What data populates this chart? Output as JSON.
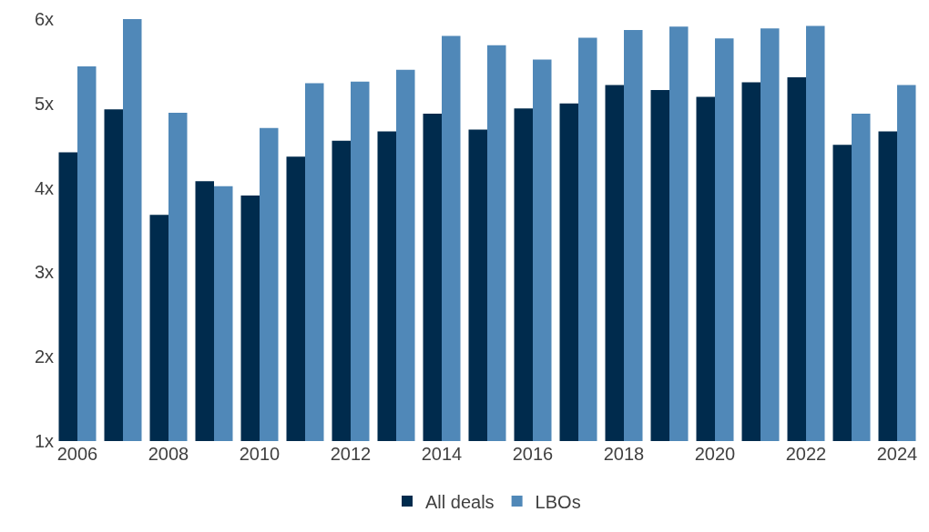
{
  "chart_data": {
    "type": "bar",
    "categories": [
      "2006",
      null,
      "2008",
      null,
      "2010",
      null,
      "2012",
      null,
      "2014",
      null,
      "2016",
      null,
      "2018",
      null,
      "2020",
      null,
      "2022",
      null,
      "2024"
    ],
    "series": [
      {
        "name": "All deals",
        "color": "#002b4d",
        "values": [
          4.42,
          4.93,
          3.68,
          4.08,
          3.91,
          4.37,
          4.56,
          4.67,
          4.88,
          4.69,
          4.94,
          5.0,
          5.22,
          5.16,
          5.08,
          5.25,
          5.31,
          4.51,
          4.67
        ]
      },
      {
        "name": "LBOs",
        "color": "#5088b8",
        "values": [
          5.44,
          6.0,
          4.89,
          4.02,
          4.71,
          5.24,
          5.26,
          5.4,
          5.8,
          5.69,
          5.52,
          5.78,
          5.87,
          5.91,
          5.77,
          5.89,
          5.92,
          4.88,
          5.22
        ]
      }
    ],
    "ylim": [
      1,
      6
    ],
    "yticks": [
      {
        "value": 1,
        "label": "1x"
      },
      {
        "value": 2,
        "label": "2x"
      },
      {
        "value": 3,
        "label": "3x"
      },
      {
        "value": 4,
        "label": "4x"
      },
      {
        "value": 5,
        "label": "5x"
      },
      {
        "value": 6,
        "label": "6x"
      }
    ],
    "grid": false,
    "legend": "bottom"
  }
}
